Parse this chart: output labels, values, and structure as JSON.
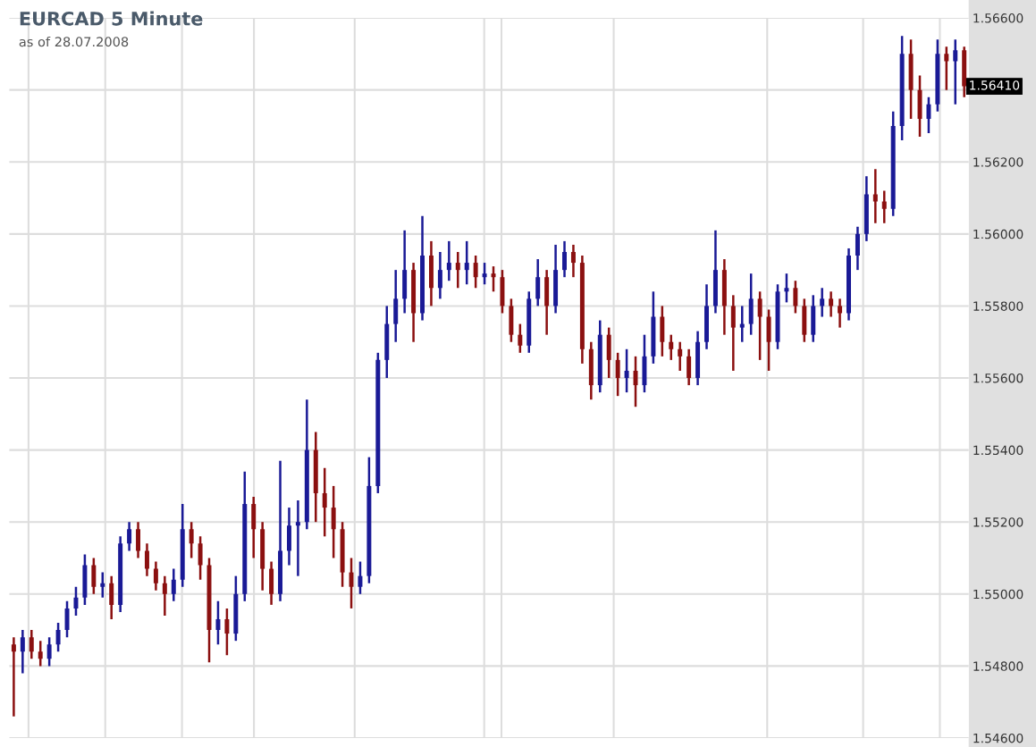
{
  "chart_data": {
    "type": "candlestick",
    "title": "EURCAD 5 Minute",
    "subtitle": "as of 28.07.2008",
    "categories": [
      null,
      null,
      null,
      null,
      null,
      null,
      null,
      null,
      null,
      null,
      null,
      null,
      null,
      null,
      null,
      null,
      null,
      null,
      null,
      null,
      null,
      null,
      null,
      null,
      null,
      null,
      null,
      null,
      null,
      null,
      null,
      null,
      null,
      null,
      null,
      null,
      null,
      null,
      null,
      null,
      null,
      null,
      null,
      null,
      null,
      null,
      null,
      null,
      null,
      null,
      null,
      null,
      null,
      null,
      null,
      null,
      null,
      null,
      null,
      null,
      null,
      null,
      null,
      null,
      null,
      null,
      null,
      null,
      null,
      null,
      null,
      null,
      null,
      null,
      null,
      null,
      null,
      null,
      null,
      null,
      null,
      null,
      null,
      null,
      null,
      null,
      null,
      null,
      null,
      null,
      null,
      null,
      null,
      null,
      null,
      null,
      null,
      null,
      null,
      null,
      null,
      null,
      null,
      null,
      null,
      null,
      null,
      null
    ],
    "ohlc": [
      [
        1.5486,
        1.5488,
        1.5466,
        1.5484
      ],
      [
        1.5484,
        1.549,
        1.5478,
        1.5488
      ],
      [
        1.5488,
        1.549,
        1.5482,
        1.5484
      ],
      [
        1.5484,
        1.5487,
        1.548,
        1.5482
      ],
      [
        1.5482,
        1.5488,
        1.548,
        1.5486
      ],
      [
        1.5486,
        1.5492,
        1.5484,
        1.549
      ],
      [
        1.549,
        1.5498,
        1.5488,
        1.5496
      ],
      [
        1.5496,
        1.5502,
        1.5494,
        1.5499
      ],
      [
        1.5499,
        1.5511,
        1.5497,
        1.5508
      ],
      [
        1.5508,
        1.551,
        1.55,
        1.5502
      ],
      [
        1.5502,
        1.5506,
        1.5499,
        1.5503
      ],
      [
        1.5503,
        1.5505,
        1.5493,
        1.5497
      ],
      [
        1.5497,
        1.5516,
        1.5495,
        1.5514
      ],
      [
        1.5514,
        1.552,
        1.5512,
        1.5518
      ],
      [
        1.5518,
        1.552,
        1.551,
        1.5512
      ],
      [
        1.5512,
        1.5514,
        1.5505,
        1.5507
      ],
      [
        1.5507,
        1.5509,
        1.5501,
        1.5503
      ],
      [
        1.5503,
        1.5505,
        1.5494,
        1.55
      ],
      [
        1.55,
        1.5507,
        1.5498,
        1.5504
      ],
      [
        1.5504,
        1.5525,
        1.5502,
        1.5518
      ],
      [
        1.5518,
        1.552,
        1.551,
        1.5514
      ],
      [
        1.5514,
        1.5516,
        1.5504,
        1.5508
      ],
      [
        1.5508,
        1.551,
        1.5481,
        1.549
      ],
      [
        1.549,
        1.5498,
        1.5486,
        1.5493
      ],
      [
        1.5493,
        1.5496,
        1.5483,
        1.5489
      ],
      [
        1.5489,
        1.5505,
        1.5487,
        1.55
      ],
      [
        1.55,
        1.5534,
        1.5498,
        1.5525
      ],
      [
        1.5525,
        1.5527,
        1.551,
        1.5518
      ],
      [
        1.5518,
        1.552,
        1.5501,
        1.5507
      ],
      [
        1.5507,
        1.5509,
        1.5497,
        1.55
      ],
      [
        1.55,
        1.5537,
        1.5498,
        1.5512
      ],
      [
        1.5512,
        1.5524,
        1.5508,
        1.5519
      ],
      [
        1.5519,
        1.5526,
        1.5505,
        1.552
      ],
      [
        1.552,
        1.5554,
        1.5518,
        1.554
      ],
      [
        1.554,
        1.5545,
        1.552,
        1.5528
      ],
      [
        1.5528,
        1.5535,
        1.5516,
        1.5524
      ],
      [
        1.5524,
        1.553,
        1.551,
        1.5518
      ],
      [
        1.5518,
        1.552,
        1.5502,
        1.5506
      ],
      [
        1.5506,
        1.551,
        1.5496,
        1.5502
      ],
      [
        1.5502,
        1.5509,
        1.55,
        1.5505
      ],
      [
        1.5505,
        1.5538,
        1.5503,
        1.553
      ],
      [
        1.553,
        1.5567,
        1.5528,
        1.5565
      ],
      [
        1.5565,
        1.558,
        1.556,
        1.5575
      ],
      [
        1.5575,
        1.559,
        1.557,
        1.5582
      ],
      [
        1.5582,
        1.5601,
        1.5578,
        1.559
      ],
      [
        1.559,
        1.5592,
        1.557,
        1.5578
      ],
      [
        1.5578,
        1.5605,
        1.5576,
        1.5594
      ],
      [
        1.5594,
        1.5598,
        1.558,
        1.5585
      ],
      [
        1.5585,
        1.5595,
        1.5582,
        1.559
      ],
      [
        1.559,
        1.5598,
        1.5587,
        1.5592
      ],
      [
        1.5592,
        1.5595,
        1.5585,
        1.559
      ],
      [
        1.559,
        1.5598,
        1.5586,
        1.5592
      ],
      [
        1.5592,
        1.5594,
        1.5585,
        1.5588
      ],
      [
        1.5588,
        1.5592,
        1.5586,
        1.5589
      ],
      [
        1.5589,
        1.5591,
        1.5584,
        1.5588
      ],
      [
        1.5588,
        1.559,
        1.5578,
        1.558
      ],
      [
        1.558,
        1.5582,
        1.557,
        1.5572
      ],
      [
        1.5572,
        1.5575,
        1.5567,
        1.5569
      ],
      [
        1.5569,
        1.5584,
        1.5567,
        1.5582
      ],
      [
        1.5582,
        1.5593,
        1.558,
        1.5588
      ],
      [
        1.5588,
        1.559,
        1.5572,
        1.558
      ],
      [
        1.558,
        1.5597,
        1.5578,
        1.559
      ],
      [
        1.559,
        1.5598,
        1.5588,
        1.5595
      ],
      [
        1.5595,
        1.5597,
        1.5588,
        1.5592
      ],
      [
        1.5592,
        1.5594,
        1.5564,
        1.5568
      ],
      [
        1.5568,
        1.557,
        1.5554,
        1.5558
      ],
      [
        1.5558,
        1.5576,
        1.5556,
        1.5572
      ],
      [
        1.5572,
        1.5574,
        1.556,
        1.5565
      ],
      [
        1.5565,
        1.5567,
        1.5555,
        1.556
      ],
      [
        1.556,
        1.5568,
        1.5556,
        1.5562
      ],
      [
        1.5562,
        1.5566,
        1.5552,
        1.5558
      ],
      [
        1.5558,
        1.5572,
        1.5556,
        1.5566
      ],
      [
        1.5566,
        1.5584,
        1.5564,
        1.5577
      ],
      [
        1.5577,
        1.558,
        1.5566,
        1.557
      ],
      [
        1.557,
        1.5572,
        1.5565,
        1.5568
      ],
      [
        1.5568,
        1.557,
        1.5562,
        1.5566
      ],
      [
        1.5566,
        1.5568,
        1.5558,
        1.556
      ],
      [
        1.556,
        1.5573,
        1.5558,
        1.557
      ],
      [
        1.557,
        1.5586,
        1.5568,
        1.558
      ],
      [
        1.558,
        1.5601,
        1.5578,
        1.559
      ],
      [
        1.559,
        1.5593,
        1.5572,
        1.558
      ],
      [
        1.558,
        1.5583,
        1.5562,
        1.5574
      ],
      [
        1.5574,
        1.558,
        1.557,
        1.5575
      ],
      [
        1.5575,
        1.5589,
        1.5572,
        1.5582
      ],
      [
        1.5582,
        1.5584,
        1.5565,
        1.5577
      ],
      [
        1.5577,
        1.5579,
        1.5562,
        1.557
      ],
      [
        1.557,
        1.5586,
        1.5568,
        1.5584
      ],
      [
        1.5584,
        1.5589,
        1.5581,
        1.5585
      ],
      [
        1.5585,
        1.5587,
        1.5578,
        1.558
      ],
      [
        1.558,
        1.5582,
        1.557,
        1.5572
      ],
      [
        1.5572,
        1.5583,
        1.557,
        1.558
      ],
      [
        1.558,
        1.5585,
        1.5577,
        1.5582
      ],
      [
        1.5582,
        1.5584,
        1.5577,
        1.558
      ],
      [
        1.558,
        1.5582,
        1.5574,
        1.5578
      ],
      [
        1.5578,
        1.5596,
        1.5576,
        1.5594
      ],
      [
        1.5594,
        1.5602,
        1.559,
        1.56
      ],
      [
        1.56,
        1.5616,
        1.5598,
        1.5611
      ],
      [
        1.5611,
        1.5618,
        1.5603,
        1.5609
      ],
      [
        1.5609,
        1.5612,
        1.5603,
        1.5607
      ],
      [
        1.5607,
        1.5634,
        1.5605,
        1.563
      ],
      [
        1.563,
        1.5655,
        1.5626,
        1.565
      ],
      [
        1.565,
        1.5654,
        1.5632,
        1.564
      ],
      [
        1.564,
        1.5644,
        1.5627,
        1.5632
      ],
      [
        1.5632,
        1.5638,
        1.5628,
        1.5636
      ],
      [
        1.5636,
        1.5654,
        1.5634,
        1.565
      ],
      [
        1.565,
        1.5652,
        1.564,
        1.5648
      ],
      [
        1.5648,
        1.5654,
        1.5636,
        1.5651
      ],
      [
        1.5651,
        1.5652,
        1.5638,
        1.5641
      ]
    ],
    "colors": [
      "#8b1010",
      "#1a1a96",
      "#8b1010",
      "#8b1010",
      "#1a1a96",
      "#1a1a96",
      "#1a1a96",
      "#1a1a96",
      "#1a1a96",
      "#8b1010",
      "#1a1a96",
      "#8b1010",
      "#1a1a96",
      "#1a1a96",
      "#8b1010",
      "#8b1010",
      "#8b1010",
      "#8b1010",
      "#1a1a96",
      "#1a1a96",
      "#8b1010",
      "#8b1010",
      "#8b1010",
      "#1a1a96",
      "#8b1010",
      "#1a1a96",
      "#1a1a96",
      "#8b1010",
      "#8b1010",
      "#8b1010",
      "#1a1a96",
      "#1a1a96",
      "#1a1a96",
      "#1a1a96",
      "#8b1010",
      "#8b1010",
      "#8b1010",
      "#8b1010",
      "#8b1010",
      "#1a1a96",
      "#1a1a96",
      "#1a1a96",
      "#1a1a96",
      "#1a1a96",
      "#1a1a96",
      "#8b1010",
      "#1a1a96",
      "#8b1010",
      "#1a1a96",
      "#1a1a96",
      "#8b1010",
      "#1a1a96",
      "#8b1010",
      "#1a1a96",
      "#8b1010",
      "#8b1010",
      "#8b1010",
      "#8b1010",
      "#1a1a96",
      "#1a1a96",
      "#8b1010",
      "#1a1a96",
      "#1a1a96",
      "#8b1010",
      "#8b1010",
      "#8b1010",
      "#1a1a96",
      "#8b1010",
      "#8b1010",
      "#1a1a96",
      "#8b1010",
      "#1a1a96",
      "#1a1a96",
      "#8b1010",
      "#8b1010",
      "#8b1010",
      "#8b1010",
      "#1a1a96",
      "#1a1a96",
      "#1a1a96",
      "#8b1010",
      "#8b1010",
      "#1a1a96",
      "#1a1a96",
      "#8b1010",
      "#8b1010",
      "#1a1a96",
      "#1a1a96",
      "#8b1010",
      "#8b1010",
      "#1a1a96",
      "#1a1a96",
      "#8b1010",
      "#8b1010",
      "#1a1a96",
      "#1a1a96",
      "#1a1a96",
      "#8b1010",
      "#8b1010",
      "#1a1a96",
      "#1a1a96",
      "#8b1010",
      "#8b1010",
      "#1a1a96",
      "#1a1a96",
      "#8b1010",
      "#1a1a96",
      "#8b1010"
    ],
    "ylim": [
      1.546,
      1.566
    ],
    "yticks": [
      {
        "value": 1.546,
        "label": "1.54600"
      },
      {
        "value": 1.548,
        "label": "1.54800"
      },
      {
        "value": 1.55,
        "label": "1.55000"
      },
      {
        "value": 1.552,
        "label": "1.55200"
      },
      {
        "value": 1.554,
        "label": "1.55400"
      },
      {
        "value": 1.556,
        "label": "1.55600"
      },
      {
        "value": 1.558,
        "label": "1.55800"
      },
      {
        "value": 1.56,
        "label": "1.56000"
      },
      {
        "value": 1.562,
        "label": "1.56200"
      },
      {
        "value": 1.564,
        "label": null
      },
      {
        "value": 1.566,
        "label": "1.56600"
      }
    ],
    "tick_labels": "y",
    "annotations": [
      "1.56410"
    ],
    "grid": true
  }
}
